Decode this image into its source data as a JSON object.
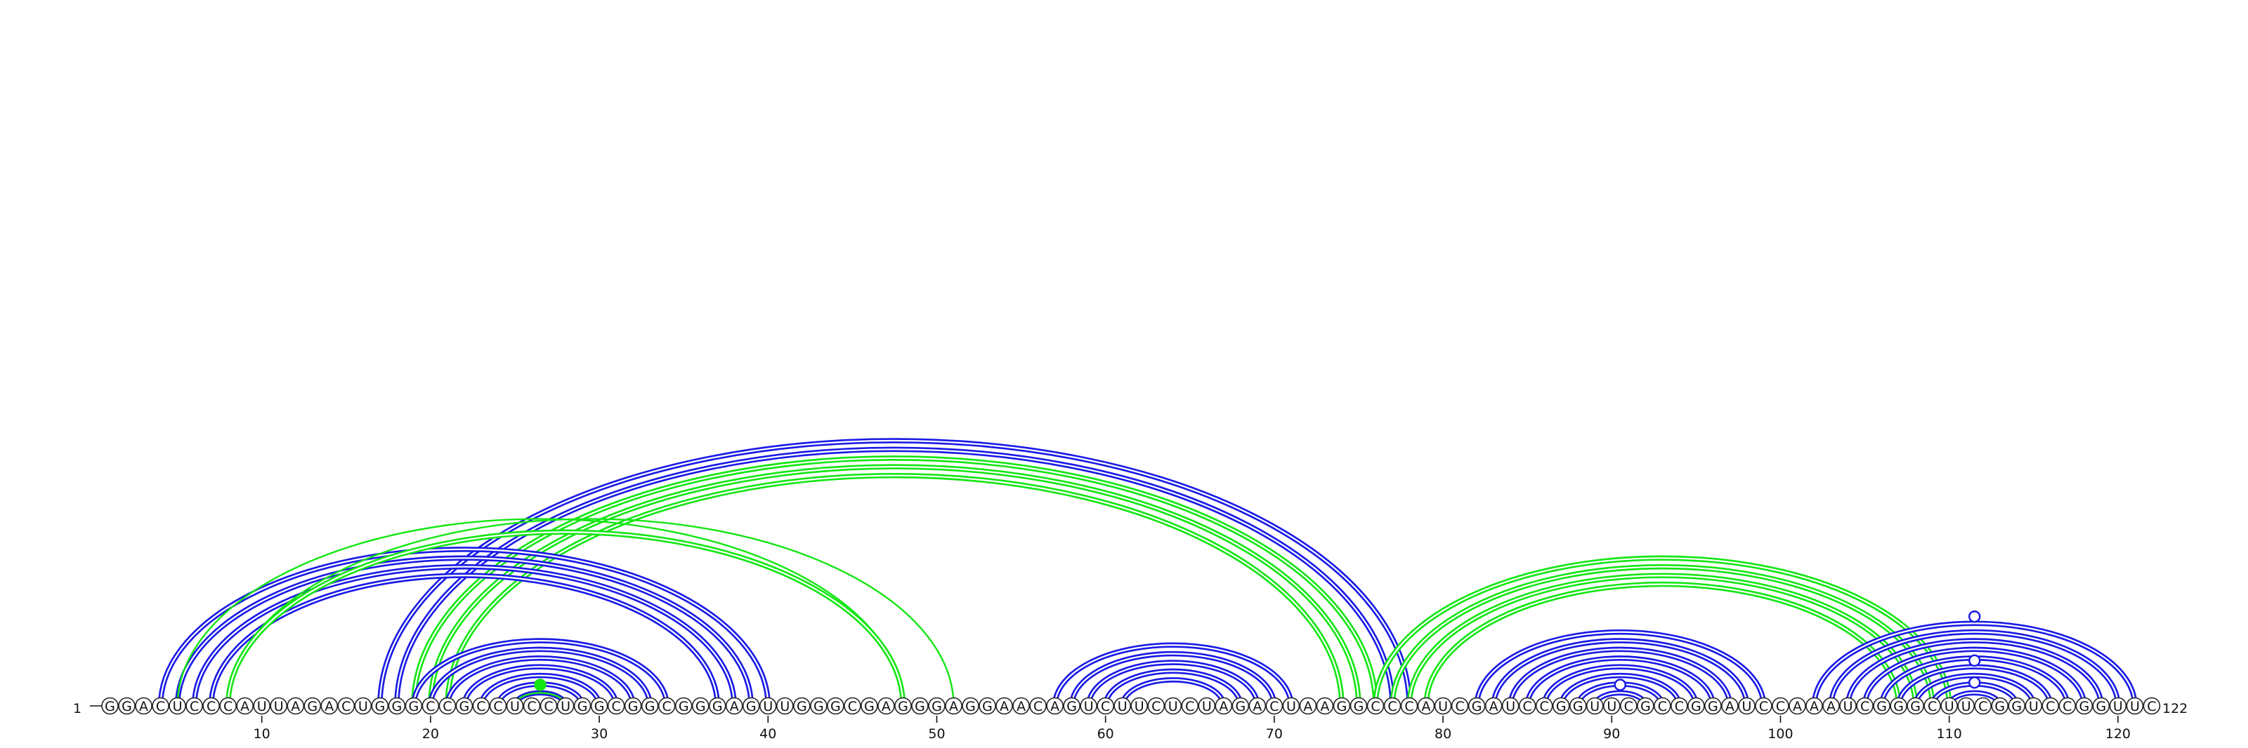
{
  "sequence": "GGACUCCCAUUAGACUGGGCCGCCUCCUGGCGGCGGGAGUUGGGCGAGGGAGGAACAGUCUUCUCUAGACUAAGGCCCAUCGAUCCGGUUCGCCGGAUCCAAAUCGGGCUUCGGUCCGGUUC",
  "start_label": "1",
  "end_label": "122",
  "tick_labels": [
    "10",
    "20",
    "30",
    "40",
    "50",
    "60",
    "70",
    "80",
    "90",
    "100",
    "110",
    "120"
  ],
  "colors": {
    "blue_pairs": "#1a1ae6",
    "green_pairs": "#14e614",
    "nucleotide_outline": "#222222",
    "background": "#ffffff"
  },
  "arc_groups": [
    {
      "color": "blue",
      "style": "double",
      "pairs": [
        [
          17,
          78
        ],
        [
          18,
          77
        ]
      ]
    },
    {
      "color": "green",
      "style": "double",
      "pairs": [
        [
          19,
          76
        ],
        [
          20,
          75
        ],
        [
          21,
          74
        ]
      ]
    },
    {
      "color": "blue",
      "style": "double",
      "pairs": [
        [
          4,
          40
        ],
        [
          5,
          39
        ],
        [
          6,
          38
        ],
        [
          7,
          37
        ]
      ]
    },
    {
      "color": "green",
      "style": "single",
      "pairs": [
        [
          5,
          48
        ],
        [
          8,
          51
        ]
      ]
    },
    {
      "color": "green",
      "style": "double",
      "pairs": [
        [
          8,
          48
        ]
      ]
    },
    {
      "color": "blue",
      "style": "double",
      "pairs": [
        [
          19,
          34
        ],
        [
          20,
          33
        ],
        [
          21,
          32
        ],
        [
          22,
          31
        ],
        [
          23,
          30
        ],
        [
          24,
          29
        ],
        [
          25,
          28
        ]
      ]
    },
    {
      "color": "green",
      "style": "single",
      "pairs": [
        [
          25,
          28
        ]
      ]
    },
    {
      "color": "blue",
      "style": "double",
      "pairs": [
        [
          57,
          71
        ],
        [
          58,
          70
        ],
        [
          59,
          69
        ],
        [
          60,
          68
        ],
        [
          61,
          67
        ]
      ]
    },
    {
      "color": "green",
      "style": "double",
      "pairs": [
        [
          76,
          110
        ],
        [
          77,
          109
        ],
        [
          78,
          108
        ],
        [
          79,
          107
        ]
      ]
    },
    {
      "color": "blue",
      "style": "double",
      "pairs": [
        [
          82,
          99
        ],
        [
          83,
          98
        ],
        [
          84,
          97
        ],
        [
          85,
          96
        ],
        [
          86,
          95
        ],
        [
          87,
          94
        ],
        [
          88,
          93
        ],
        [
          89,
          92
        ]
      ]
    },
    {
      "color": "blue",
      "style": "double",
      "pairs": [
        [
          102,
          121
        ],
        [
          103,
          120
        ],
        [
          104,
          119
        ],
        [
          105,
          118
        ],
        [
          106,
          117
        ],
        [
          107,
          116
        ],
        [
          108,
          115
        ],
        [
          109,
          114
        ],
        [
          110,
          113
        ]
      ]
    }
  ],
  "loop_markers": [
    {
      "position": 26.5,
      "color": "green",
      "filled": true
    },
    {
      "position": 90.5,
      "color": "blue",
      "filled": false
    },
    {
      "position": 111.5,
      "color": "blue",
      "filled": false,
      "level": 1
    },
    {
      "position": 111.5,
      "color": "blue",
      "filled": false,
      "level": 2
    },
    {
      "position": 111.5,
      "color": "blue",
      "filled": false,
      "level": 4
    }
  ]
}
